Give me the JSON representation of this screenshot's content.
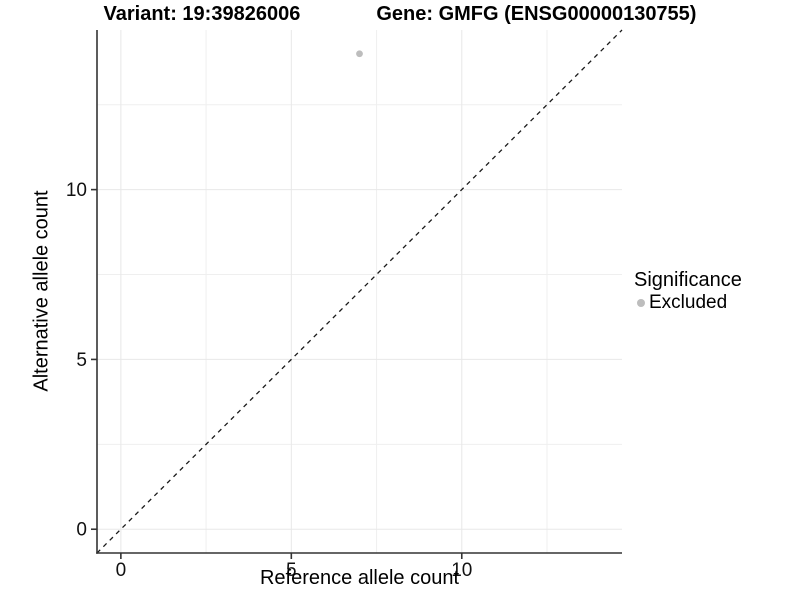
{
  "chart_data": {
    "type": "scatter",
    "titles": {
      "left": "Variant: 19:39826006",
      "right": "Gene: GMFG (ENSG00000130755)"
    },
    "xlabel": "Reference allele count",
    "ylabel": "Alternative allele count",
    "xlim": [
      -0.7,
      14.7
    ],
    "ylim": [
      -0.7,
      14.7
    ],
    "x_ticks": [
      0,
      5,
      10
    ],
    "y_ticks": [
      0,
      5,
      10
    ],
    "x_minor_gridlines": [
      2.5,
      7.5,
      12.5
    ],
    "y_minor_gridlines": [
      2.5,
      7.5,
      12.5
    ],
    "grid": true,
    "points": [
      {
        "x": 7,
        "y": 14,
        "series": "Excluded"
      }
    ],
    "identity_line": {
      "slope": 1,
      "intercept": 0,
      "style": "dashed"
    },
    "legend": {
      "title": "Significance",
      "position": "right",
      "entries": [
        {
          "label": "Excluded",
          "color": "#bdbdbd"
        }
      ]
    },
    "colors": {
      "point": "#bdbdbd",
      "grid_major": "#e8e8e8",
      "grid_minor": "#efefef",
      "axis_line": "#333333",
      "tick_mark": "#333333",
      "tick_text": "#111111",
      "identity_line": "#1a1a1a",
      "background": "#ffffff"
    }
  }
}
